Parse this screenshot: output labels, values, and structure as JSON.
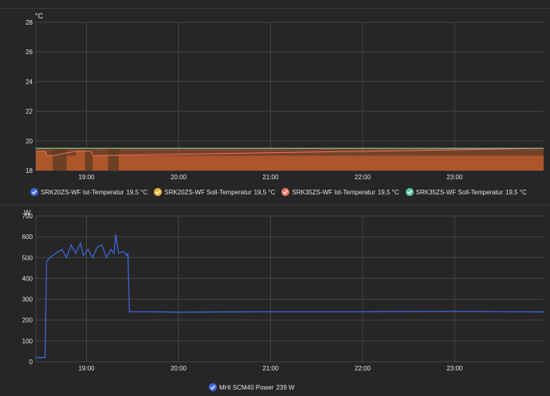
{
  "temperature_card": {
    "unit": "°C",
    "legend": [
      {
        "label": "SRK20ZS-WF Ist-Temperatur",
        "value": "19,5 °C",
        "color": "#4169e1"
      },
      {
        "label": "SRK20ZS-WF Soll-Temperatur",
        "value": "19,5 °C",
        "color": "#f2b63e"
      },
      {
        "label": "SRK35ZS-WF Ist-Temperatur",
        "value": "19,5 °C",
        "color": "#f07562"
      },
      {
        "label": "SRK35ZS-WF Soll-Temperatur",
        "value": "19,5 °C",
        "color": "#5ec6a3"
      }
    ]
  },
  "power_card": {
    "unit": "W",
    "legend": [
      {
        "label": "MHI SCM40 Power",
        "value": "239 W",
        "color": "#4169e1"
      }
    ]
  },
  "chart_data": [
    {
      "type": "area",
      "ylabel": "°C",
      "ylim": [
        18,
        28
      ],
      "yticks": [
        "28",
        "26",
        "24",
        "22",
        "20",
        "18"
      ],
      "xlim": [
        "18:27",
        "23:58"
      ],
      "xticks": [
        "19:00",
        "20:00",
        "21:00",
        "22:00",
        "23:00"
      ],
      "grid": true,
      "series": [
        {
          "name": "SRK20ZS-WF Ist-Temperatur",
          "color": "#4169e1",
          "x": [
            "18:27",
            "23:58"
          ],
          "y": [
            19.5,
            19.5
          ]
        },
        {
          "name": "SRK20ZS-WF Soll-Temperatur",
          "color": "#f2b63e",
          "x": [
            "18:27",
            "23:58"
          ],
          "y": [
            19.5,
            19.5
          ]
        },
        {
          "name": "SRK35ZS-WF Ist-Temperatur",
          "color": "#f07562",
          "x": [
            "18:27",
            "18:33",
            "18:34",
            "18:38",
            "18:53",
            "18:54",
            "19:03",
            "19:04",
            "23:58"
          ],
          "y": [
            19.3,
            19.3,
            19.0,
            19.0,
            19.3,
            19.3,
            19.3,
            19.0,
            19.5
          ]
        },
        {
          "name": "SRK35ZS-WF Soll-Temperatur",
          "color": "#5ec6a3",
          "x": [
            "18:27",
            "23:58"
          ],
          "y": [
            19.5,
            19.5
          ]
        }
      ]
    },
    {
      "type": "line",
      "ylabel": "W",
      "ylim": [
        0,
        700
      ],
      "yticks": [
        "700",
        "600",
        "500",
        "400",
        "300",
        "200",
        "100",
        "0"
      ],
      "xlim": [
        "18:27",
        "23:58"
      ],
      "xticks": [
        "19:00",
        "20:00",
        "21:00",
        "22:00",
        "23:00"
      ],
      "grid": true,
      "series": [
        {
          "name": "MHI SCM40 Power",
          "color": "#4169e1",
          "x": [
            "18:27",
            "18:33",
            "18:34",
            "18:36",
            "18:40",
            "18:44",
            "18:47",
            "18:50",
            "18:53",
            "18:56",
            "18:58",
            "19:01",
            "19:04",
            "19:07",
            "19:10",
            "19:13",
            "19:16",
            "19:18",
            "19:19",
            "19:21",
            "19:24",
            "19:26",
            "19:27",
            "19:28",
            "19:30",
            "19:40",
            "20:00",
            "21:00",
            "22:00",
            "23:00",
            "23:58"
          ],
          "y": [
            20,
            20,
            480,
            500,
            520,
            540,
            500,
            560,
            520,
            570,
            510,
            540,
            500,
            550,
            560,
            500,
            540,
            520,
            610,
            520,
            530,
            510,
            520,
            240,
            240,
            240,
            238,
            240,
            240,
            242,
            239
          ]
        }
      ]
    }
  ]
}
